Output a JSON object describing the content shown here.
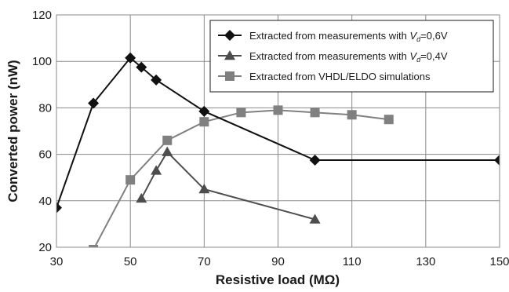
{
  "chart_data": {
    "type": "line",
    "title": "",
    "xlabel": "Resistive load (MΩ)",
    "ylabel": "Converted power (nW)",
    "xlim": [
      30,
      150
    ],
    "ylim": [
      20,
      120
    ],
    "xticks": [
      30,
      50,
      70,
      90,
      110,
      130,
      150
    ],
    "yticks": [
      20,
      40,
      60,
      80,
      100,
      120
    ],
    "xtick_labels": [
      "30",
      "50",
      "70",
      "90",
      "110",
      "130",
      "150"
    ],
    "ytick_labels": [
      "20",
      "40",
      "60",
      "80",
      "100",
      "120"
    ],
    "grid": true,
    "legend_position": "top-right",
    "series": [
      {
        "name": "Extracted from measurements with Vd=0,6V",
        "legend_prefix": "Extracted from measurements with ",
        "legend_var": "V",
        "legend_sub": "d",
        "legend_suffix": "=0,6V",
        "marker": "diamond",
        "color": "#111111",
        "x": [
          30,
          40,
          50,
          53,
          57,
          70,
          100,
          150
        ],
        "y": [
          37,
          82,
          101.5,
          97.5,
          92,
          78.5,
          57.5,
          57.5
        ]
      },
      {
        "name": "Extracted from measurements with Vd=0,4V",
        "legend_prefix": "Extracted from measurements with ",
        "legend_var": "V",
        "legend_sub": "d",
        "legend_suffix": "=0,4V",
        "marker": "triangle",
        "color": "#4d4d4d",
        "x": [
          53,
          57,
          60,
          70,
          100
        ],
        "y": [
          41,
          53,
          61,
          45,
          32
        ]
      },
      {
        "name": "Extracted from VHDL/ELDO simulations",
        "legend_prefix": "Extracted from VHDL/ELDO simulations",
        "legend_var": "",
        "legend_sub": "",
        "legend_suffix": "",
        "marker": "square",
        "color": "#808080",
        "x": [
          40,
          50,
          60,
          70,
          80,
          90,
          100,
          110,
          120
        ],
        "y": [
          19,
          49,
          66,
          74,
          78,
          79,
          78,
          77,
          75
        ]
      }
    ]
  }
}
